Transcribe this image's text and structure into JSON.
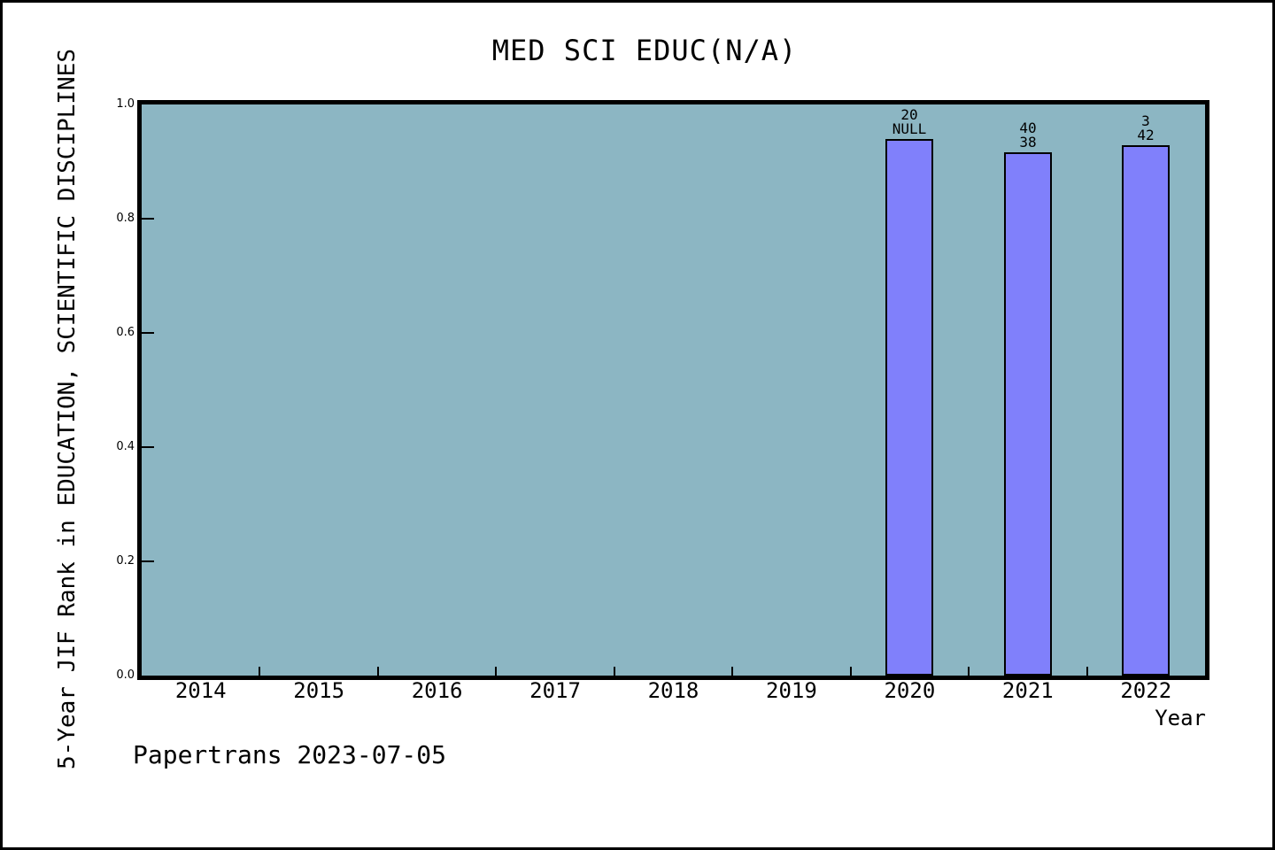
{
  "chart_data": {
    "type": "bar",
    "title": "MED SCI EDUC(N/A)",
    "xlabel": "Year",
    "ylabel": "5-Year JIF Rank in EDUCATION, SCIENTIFIC DISCIPLINES",
    "categories": [
      "2014",
      "2015",
      "2016",
      "2017",
      "2018",
      "2019",
      "2020",
      "2021",
      "2022"
    ],
    "values": [
      null,
      null,
      null,
      null,
      null,
      null,
      0.94,
      0.917,
      0.929
    ],
    "bar_labels": [
      null,
      null,
      null,
      null,
      null,
      null,
      [
        "20",
        "NULL"
      ],
      [
        "40",
        "38"
      ],
      [
        "3",
        "42"
      ]
    ],
    "ylim": [
      0.0,
      1.0
    ],
    "yticks": [
      "0.0",
      "0.2",
      "0.4",
      "0.6",
      "0.8",
      "1.0"
    ],
    "grid": false,
    "legend": "none",
    "tick_direction": "in",
    "colors": {
      "plot_background": "#8CB6C3",
      "bar_fill": "#8080FB",
      "bar_border": "#000000",
      "text": "#000000",
      "frame_border": "#000000",
      "page_background": "#FFFFFF"
    }
  },
  "footer": {
    "watermark": "Papertrans 2023-07-05"
  }
}
